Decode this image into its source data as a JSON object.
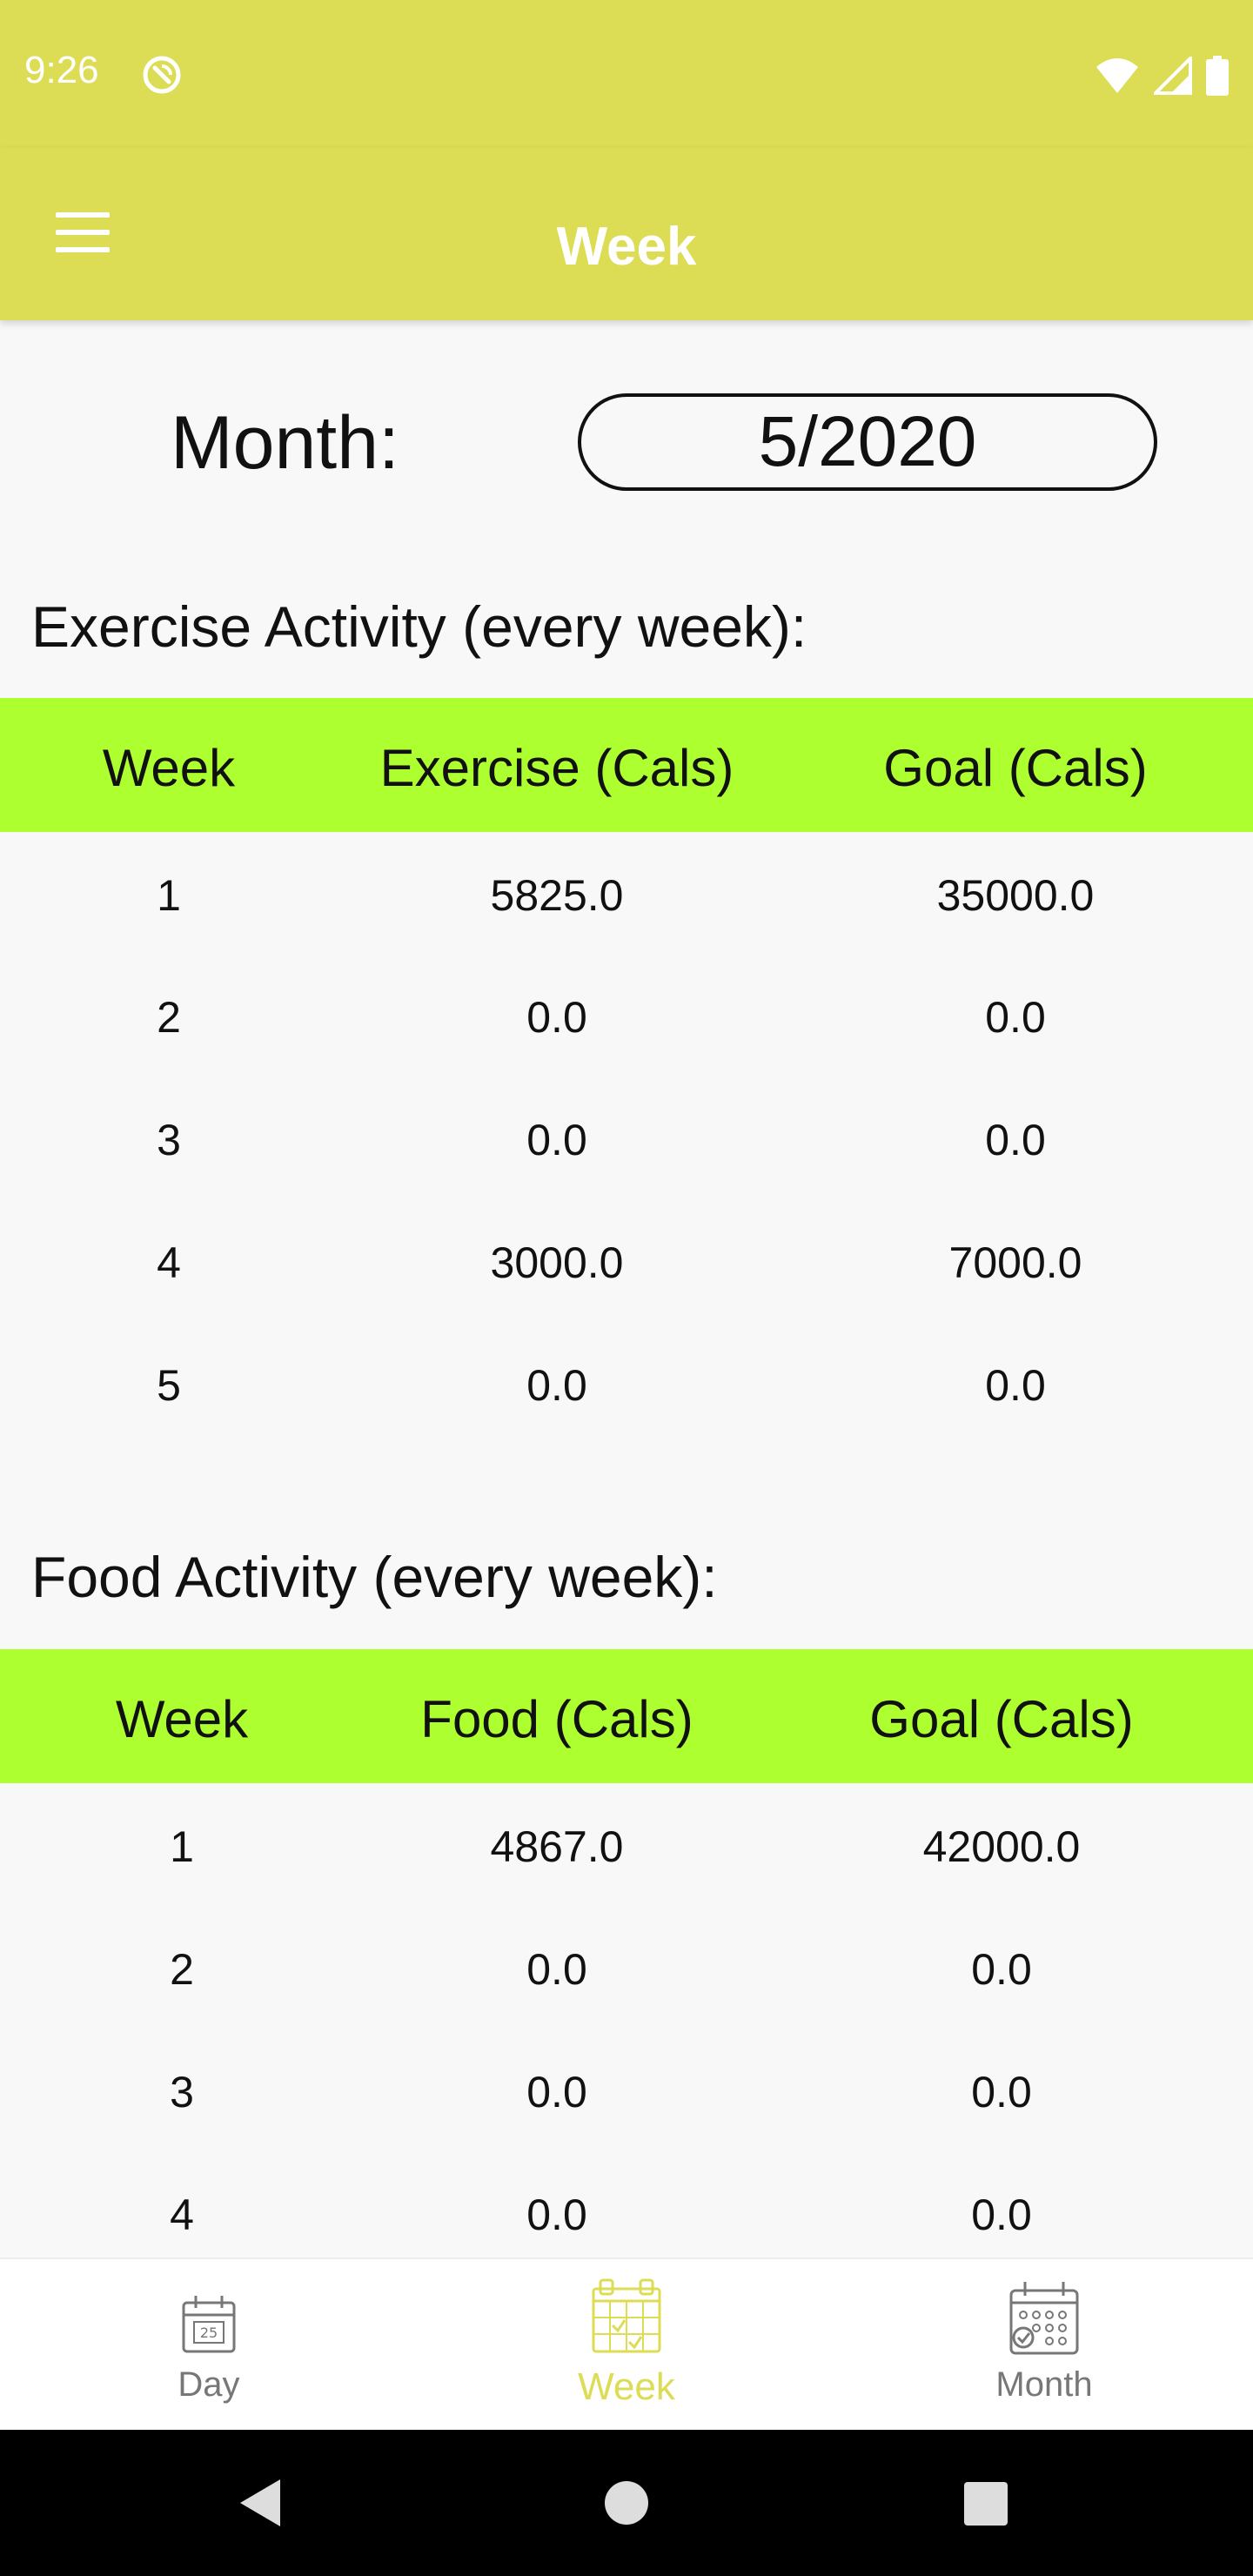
{
  "status": {
    "time": "9:26"
  },
  "appbar": {
    "title": "Week"
  },
  "month": {
    "label": "Month:",
    "value": "5/2020"
  },
  "exercise": {
    "title": "Exercise Activity (every week):",
    "headers": [
      "Week",
      "Exercise (Cals)",
      "Goal (Cals)"
    ],
    "rows": [
      [
        "1",
        "5825.0",
        "35000.0"
      ],
      [
        "2",
        "0.0",
        "0.0"
      ],
      [
        "3",
        "0.0",
        "0.0"
      ],
      [
        "4",
        "3000.0",
        "7000.0"
      ],
      [
        "5",
        "0.0",
        "0.0"
      ]
    ]
  },
  "food": {
    "title": "Food Activity (every week):",
    "headers": [
      "Week",
      "Food (Cals)",
      "Goal (Cals)"
    ],
    "rows": [
      [
        "1",
        "4867.0",
        "42000.0"
      ],
      [
        "2",
        "0.0",
        "0.0"
      ],
      [
        "3",
        "0.0",
        "0.0"
      ],
      [
        "4",
        "0.0",
        "0.0"
      ]
    ]
  },
  "nav": {
    "items": [
      {
        "label": "Day",
        "icon": "day-calendar-icon"
      },
      {
        "label": "Week",
        "icon": "week-calendar-icon"
      },
      {
        "label": "Month",
        "icon": "month-calendar-icon"
      }
    ],
    "active": "Week"
  },
  "colors": {
    "appbar": "#dcdc55",
    "table_header": "#adff2f",
    "background": "#f8f8f8",
    "nav_active": "#dcdc55",
    "nav_inactive": "#777777"
  }
}
